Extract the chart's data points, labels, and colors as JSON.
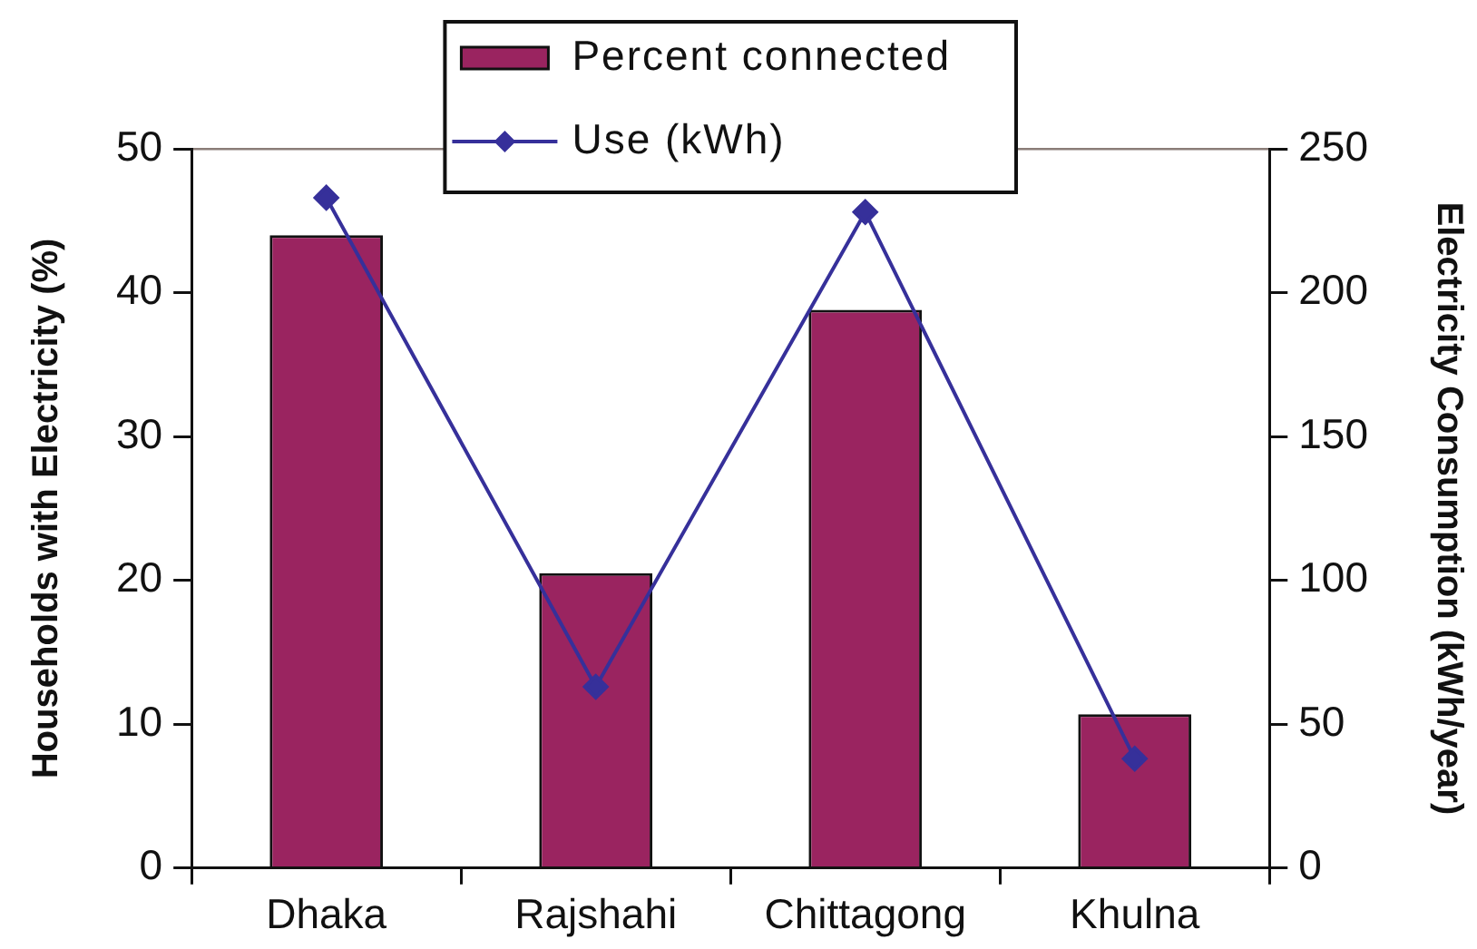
{
  "chart_data": {
    "type": "bar",
    "ylabel": "Households with Electricity (%)",
    "y2label": "Electricity Consumption (kWh/year)",
    "categories": [
      "Dhaka",
      "Rajshahi",
      "Chittagong",
      "Khulna"
    ],
    "series": [
      {
        "name": "Percent connected",
        "color": "#9a2460",
        "values": [
          44,
          20.5,
          38.8,
          10.7
        ]
      },
      {
        "name": "Use (kWh)",
        "type": "line",
        "axis": "y2",
        "color": "#36309a",
        "values": [
          233,
          63,
          228,
          38
        ]
      }
    ],
    "ylim": [
      0,
      50
    ],
    "yticks": [
      0,
      10,
      20,
      30,
      40,
      50
    ],
    "y2lim": [
      0,
      250
    ],
    "y2ticks": [
      0,
      50,
      100,
      150,
      200,
      250
    ],
    "legend": "top",
    "marker": "diamond"
  }
}
